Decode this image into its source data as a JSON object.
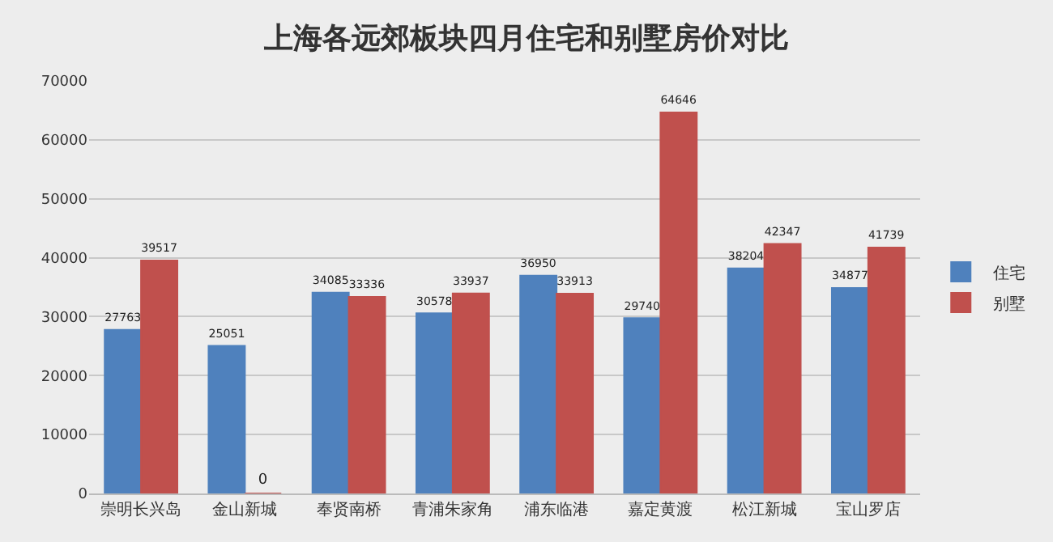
{
  "chart_data": {
    "type": "bar",
    "title": "上海各远郊板块四月住宅和别墅房价对比",
    "categories": [
      "崇明长兴岛",
      "金山新城",
      "奉贤南桥",
      "青浦朱家角",
      "浦东临港",
      "嘉定黄渡",
      "松江新城",
      "宝山罗店"
    ],
    "series": [
      {
        "name": "住宅",
        "color": "#4f81bd",
        "values": [
          27763,
          25051,
          34085,
          30578,
          36950,
          29740,
          38204,
          34877
        ]
      },
      {
        "name": "别墅",
        "color": "#c0504d",
        "values": [
          39517,
          0,
          33336,
          33937,
          33913,
          64646,
          42347,
          41739
        ]
      }
    ],
    "ylim": [
      0,
      70000
    ],
    "yticks": [
      0,
      10000,
      20000,
      30000,
      40000,
      50000,
      60000,
      70000
    ],
    "grid": "y",
    "legend": "right",
    "data_labels": true
  }
}
